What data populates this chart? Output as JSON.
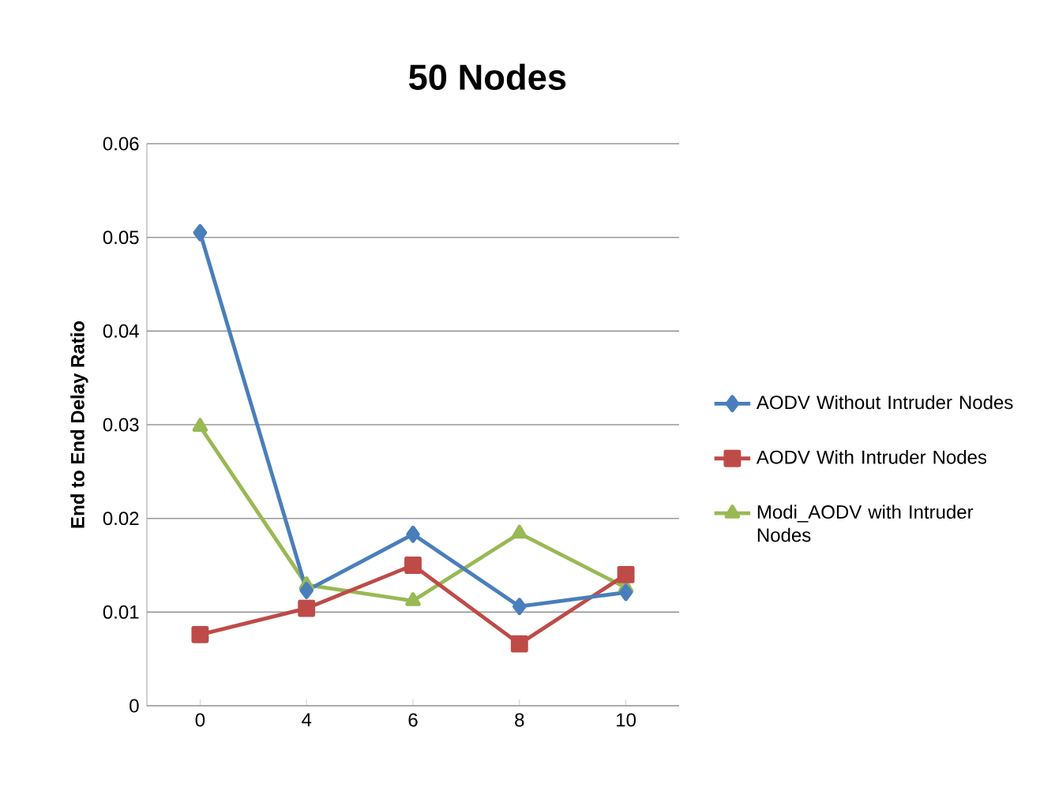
{
  "chart_data": {
    "type": "line",
    "title": "50 Nodes",
    "ylabel": "End to End Delay Ratio",
    "categories": [
      "0",
      "4",
      "6",
      "8",
      "10"
    ],
    "series": [
      {
        "name": "AODV Without Intruder Nodes",
        "color": "#4a7ebb",
        "marker": "diamond",
        "values": [
          0.0505,
          0.0123,
          0.0183,
          0.0106,
          0.0121
        ]
      },
      {
        "name": "AODV With Intruder Nodes",
        "color": "#be4b48",
        "marker": "square",
        "values": [
          0.0076,
          0.0104,
          0.015,
          0.0066,
          0.014
        ]
      },
      {
        "name": "Modi_AODV with Intruder Nodes",
        "color": "#98b954",
        "marker": "triangle",
        "values": [
          0.0298,
          0.0129,
          0.0112,
          0.0184,
          0.0126
        ]
      }
    ],
    "ylim": [
      0,
      0.06
    ],
    "yticks": [
      0,
      0.01,
      0.02,
      0.03,
      0.04,
      0.05,
      0.06
    ],
    "grid": "y",
    "legend": "right",
    "line_style": "solid"
  }
}
